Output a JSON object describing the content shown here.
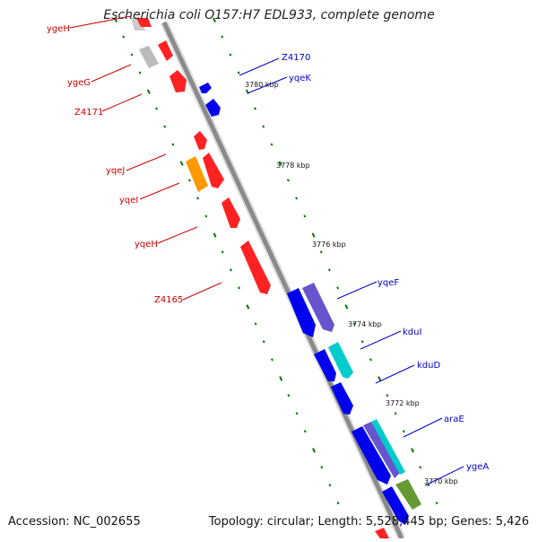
{
  "title": "Escherichia coli O157:H7 EDL933, complete genome",
  "footer": {
    "accession": "Accession: NC_002655",
    "topology": "Topology: circular; Length: 5,528,445 bp; Genes: 5,426"
  },
  "colors": {
    "backbone": "#8a8a8a",
    "forward_gene": "#0000ee",
    "reverse_gene": "#ff0000",
    "tick": "#007700",
    "label_blue": "#0000cc",
    "label_red": "#cc0000",
    "cyan_gene": "#00cccc",
    "purple_gene": "#6655cc",
    "orange_gene": "#ff9900",
    "olive_gene": "#669933",
    "grey_gene": "#bbbbbb"
  },
  "ticks": [
    {
      "label": "3780 kbp"
    },
    {
      "label": "3778 kbp"
    },
    {
      "label": "3776 kbp"
    },
    {
      "label": "3774 kbp"
    },
    {
      "label": "3772 kbp"
    },
    {
      "label": "3770 kbp"
    }
  ],
  "gene_labels_left": [
    "ygeH",
    "ygeG",
    "Z4171",
    "yqeJ",
    "yqeI",
    "yqeH",
    "Z4165"
  ],
  "gene_labels_right": [
    "Z4170",
    "yqeK",
    "yqeF",
    "kduI",
    "kduD",
    "araE",
    "ygeA"
  ]
}
